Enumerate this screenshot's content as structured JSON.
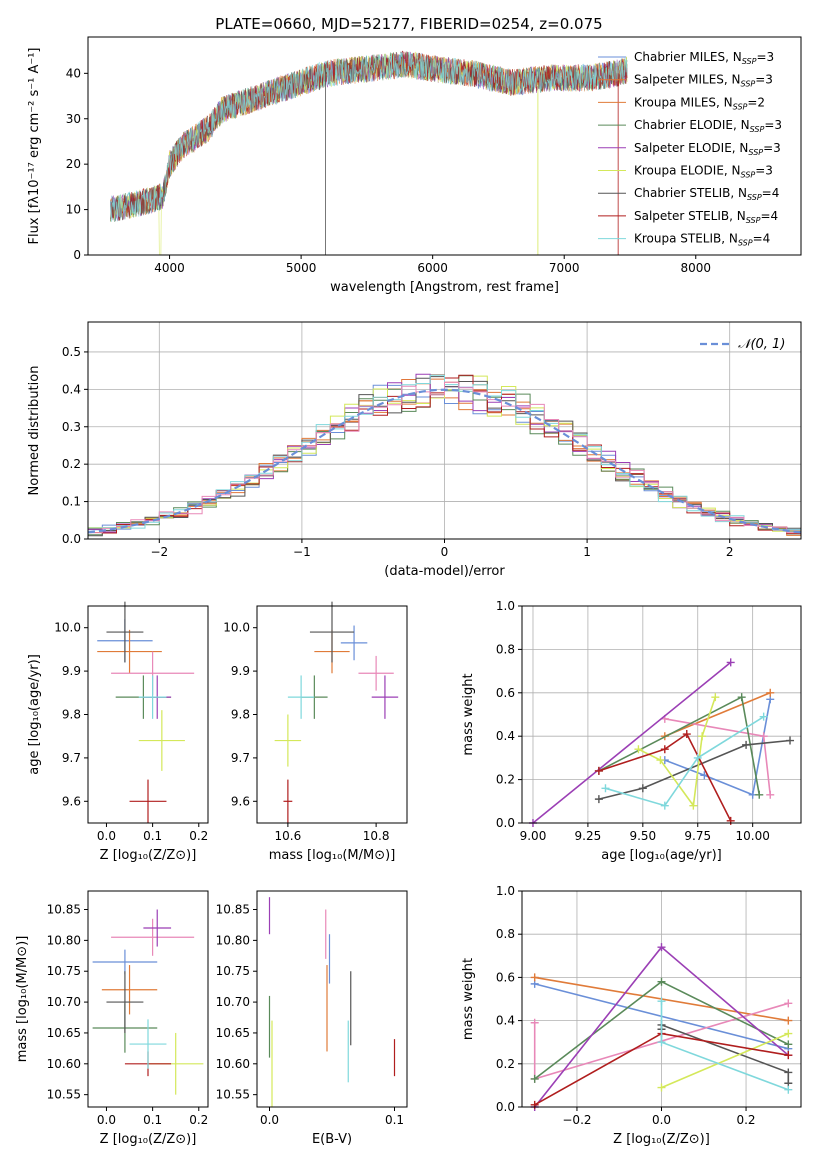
{
  "colors": {
    "Chabrier MILES": "#6a8fd8",
    "Salpeter MILES": "#e0763a",
    "Kroupa MILES": "#e07b39",
    "Chabrier ELODIE": "#5a8a5a",
    "Salpeter ELODIE": "#9b3fb5",
    "Kroupa ELODIE": "#d4e85a",
    "Chabrier STELIB": "#555555",
    "Salpeter STELIB": "#b01e1e",
    "Kroupa STELIB": "#7fd8dc",
    "pink": "#e888b8"
  },
  "chart_data": [
    {
      "type": "line",
      "title": "PLATE=0660, MJD=52177, FIBERID=0254, z=0.075",
      "xlabel": "wavelength [Angstrom, rest frame]",
      "ylabel": "Flux [fλ10⁻¹⁷ erg cm⁻² s⁻¹ A⁻¹]",
      "xlim": [
        3380,
        8800
      ],
      "ylim": [
        0,
        48
      ],
      "xticks": [
        4000,
        5000,
        6000,
        7000,
        8000
      ],
      "yticks": [
        0,
        10,
        20,
        30,
        40
      ],
      "legend_position": "top-right",
      "legend": [
        {
          "name": "Chabrier MILES",
          "sub": "N",
          "ssp": "3"
        },
        {
          "name": "Salpeter MILES",
          "sub": "N",
          "ssp": "3"
        },
        {
          "name": "Kroupa MILES",
          "sub": "N",
          "ssp": "2"
        },
        {
          "name": "Chabrier ELODIE",
          "sub": "N",
          "ssp": "3"
        },
        {
          "name": "Salpeter ELODIE",
          "sub": "N",
          "ssp": "3"
        },
        {
          "name": "Kroupa ELODIE",
          "sub": "N",
          "ssp": "3"
        },
        {
          "name": "Chabrier STELIB",
          "sub": "N",
          "ssp": "4"
        },
        {
          "name": "Salpeter STELIB",
          "sub": "N",
          "ssp": "4"
        },
        {
          "name": "Kroupa STELIB",
          "sub": "N",
          "ssp": "4"
        }
      ],
      "continuum": {
        "x": [
          3550,
          3700,
          3850,
          3950,
          4000,
          4100,
          4300,
          4400,
          4600,
          4800,
          5000,
          5200,
          5500,
          5800,
          6000,
          6300,
          6600,
          6900,
          7200,
          7400,
          7500
        ],
        "y": [
          10,
          11,
          12,
          13,
          20,
          24,
          28,
          32,
          34,
          36,
          38,
          40,
          41,
          42,
          41,
          40,
          38,
          39,
          39,
          40,
          41
        ]
      }
    },
    {
      "type": "line",
      "xlabel": "(data-model)/error",
      "ylabel": "Normed distribution",
      "xlim": [
        -2.5,
        2.5
      ],
      "ylim": [
        0,
        0.58
      ],
      "xticks": [
        -2,
        -1,
        0,
        1,
        2
      ],
      "yticks": [
        0.0,
        0.1,
        0.2,
        0.3,
        0.4,
        0.5
      ],
      "grid": true,
      "legend_position": "top-right",
      "legend": [
        "𝒩(0, 1)"
      ],
      "gaussian": {
        "mean": 0,
        "sigma": 1
      }
    },
    {
      "type": "scatter",
      "xlabel": "Z [log₁₀(Z/Z⊙)]",
      "ylabel": "age  [log₁₀(age/yr)]",
      "xlim": [
        -0.04,
        0.22
      ],
      "ylim": [
        9.55,
        10.05
      ],
      "xticks": [
        0.0,
        0.1,
        0.2
      ],
      "yticks": [
        9.6,
        9.7,
        9.8,
        9.9,
        10.0
      ],
      "points": [
        {
          "x": 0.04,
          "y": 9.97,
          "xerr": 0.06,
          "yerr": 0.05,
          "color": "#6a8fd8"
        },
        {
          "x": 0.05,
          "y": 9.945,
          "xerr": 0.07,
          "yerr": 0.05,
          "color": "#e07b39"
        },
        {
          "x": 0.1,
          "y": 9.895,
          "xerr": 0.09,
          "yerr": 0.05,
          "color": "#e888b8"
        },
        {
          "x": 0.08,
          "y": 9.84,
          "xerr": 0.06,
          "yerr": 0.05,
          "color": "#5a8a5a"
        },
        {
          "x": 0.04,
          "y": 9.99,
          "xerr": 0.04,
          "yerr": 0.07,
          "color": "#555555"
        },
        {
          "x": 0.11,
          "y": 9.84,
          "xerr": 0.03,
          "yerr": 0.05,
          "color": "#9b3fb5"
        },
        {
          "x": 0.12,
          "y": 9.74,
          "xerr": 0.05,
          "yerr": 0.07,
          "color": "#d4e85a"
        },
        {
          "x": 0.09,
          "y": 9.6,
          "xerr": 0.04,
          "yerr": 0.05,
          "color": "#b01e1e"
        },
        {
          "x": 0.1,
          "y": 9.84,
          "xerr": 0.03,
          "yerr": 0.05,
          "color": "#7fd8dc"
        }
      ]
    },
    {
      "type": "scatter",
      "xlabel": "mass [log₁₀(M/M⊙)]",
      "xlim": [
        10.53,
        10.87
      ],
      "ylim": [
        9.55,
        10.05
      ],
      "xticks": [
        10.6,
        10.8
      ],
      "yticks": [
        9.6,
        9.7,
        9.8,
        9.9,
        10.0
      ],
      "points": [
        {
          "x": 10.75,
          "y": 9.965,
          "xerr": 0.03,
          "yerr": 0.04,
          "color": "#6a8fd8"
        },
        {
          "x": 10.7,
          "y": 9.945,
          "xerr": 0.04,
          "yerr": 0.05,
          "color": "#e07b39"
        },
        {
          "x": 10.8,
          "y": 9.895,
          "xerr": 0.04,
          "yerr": 0.04,
          "color": "#e888b8"
        },
        {
          "x": 10.66,
          "y": 9.84,
          "xerr": 0.03,
          "yerr": 0.05,
          "color": "#5a8a5a"
        },
        {
          "x": 10.7,
          "y": 9.99,
          "xerr": 0.05,
          "yerr": 0.07,
          "color": "#555555"
        },
        {
          "x": 10.82,
          "y": 9.84,
          "xerr": 0.03,
          "yerr": 0.05,
          "color": "#9b3fb5"
        },
        {
          "x": 10.6,
          "y": 9.74,
          "xerr": 0.03,
          "yerr": 0.06,
          "color": "#d4e85a"
        },
        {
          "x": 10.6,
          "y": 9.6,
          "xerr": 0.01,
          "yerr": 0.05,
          "color": "#b01e1e"
        },
        {
          "x": 10.63,
          "y": 9.84,
          "xerr": 0.03,
          "yerr": 0.05,
          "color": "#7fd8dc"
        }
      ]
    },
    {
      "type": "line",
      "xlabel": "age  [log₁₀(age/yr)]",
      "ylabel": "mass weight",
      "xlim": [
        8.95,
        10.22
      ],
      "ylim": [
        0,
        1.0
      ],
      "xticks": [
        9.0,
        9.25,
        9.5,
        9.75,
        10.0
      ],
      "yticks": [
        0.0,
        0.2,
        0.4,
        0.6,
        0.8,
        1.0
      ],
      "grid": true,
      "series": [
        {
          "color": "#6a8fd8",
          "x": [
            9.6,
            9.78,
            10.0,
            10.08
          ],
          "y": [
            0.29,
            0.22,
            0.13,
            0.57
          ]
        },
        {
          "color": "#e07b39",
          "x": [
            9.6,
            10.08
          ],
          "y": [
            0.4,
            0.6
          ]
        },
        {
          "color": "#e888b8",
          "x": [
            9.6,
            10.05,
            10.08
          ],
          "y": [
            0.48,
            0.4,
            0.13
          ]
        },
        {
          "color": "#5a8a5a",
          "x": [
            9.3,
            9.95,
            10.03
          ],
          "y": [
            0.24,
            0.58,
            0.13
          ]
        },
        {
          "color": "#555555",
          "x": [
            9.3,
            9.5,
            9.97,
            10.17
          ],
          "y": [
            0.11,
            0.16,
            0.36,
            0.38
          ]
        },
        {
          "color": "#9b3fb5",
          "x": [
            9.0,
            9.9
          ],
          "y": [
            0.0,
            0.74
          ]
        },
        {
          "color": "#d4e85a",
          "x": [
            9.48,
            9.58,
            9.73,
            9.77,
            9.83
          ],
          "y": [
            0.34,
            0.29,
            0.08,
            0.4,
            0.58
          ]
        },
        {
          "color": "#b01e1e",
          "x": [
            9.3,
            9.6,
            9.7,
            9.9
          ],
          "y": [
            0.24,
            0.34,
            0.41,
            0.01
          ]
        },
        {
          "color": "#7fd8dc",
          "x": [
            9.33,
            9.6,
            9.75,
            10.05
          ],
          "y": [
            0.16,
            0.08,
            0.3,
            0.49
          ]
        }
      ]
    },
    {
      "type": "scatter",
      "xlabel": "Z [log₁₀(Z/Z⊙)]",
      "ylabel": "mass [log₁₀(M/M⊙)]",
      "xlim": [
        -0.04,
        0.22
      ],
      "ylim": [
        10.53,
        10.88
      ],
      "xticks": [
        0.0,
        0.1,
        0.2
      ],
      "yticks": [
        10.55,
        10.6,
        10.65,
        10.7,
        10.75,
        10.8,
        10.85
      ],
      "points": [
        {
          "x": 0.04,
          "y": 10.765,
          "xerr": 0.07,
          "yerr": 0.02,
          "color": "#6a8fd8"
        },
        {
          "x": 0.05,
          "y": 10.72,
          "xerr": 0.06,
          "yerr": 0.04,
          "color": "#e07b39"
        },
        {
          "x": 0.1,
          "y": 10.805,
          "xerr": 0.09,
          "yerr": 0.03,
          "color": "#e888b8"
        },
        {
          "x": 0.04,
          "y": 10.658,
          "xerr": 0.07,
          "yerr": 0.04,
          "color": "#5a8a5a"
        },
        {
          "x": 0.04,
          "y": 10.7,
          "xerr": 0.04,
          "yerr": 0.05,
          "color": "#555555"
        },
        {
          "x": 0.11,
          "y": 10.82,
          "xerr": 0.03,
          "yerr": 0.03,
          "color": "#9b3fb5"
        },
        {
          "x": 0.15,
          "y": 10.6,
          "xerr": 0.06,
          "yerr": 0.05,
          "color": "#d4e85a"
        },
        {
          "x": 0.09,
          "y": 10.6,
          "xerr": 0.05,
          "yerr": 0.02,
          "color": "#b01e1e"
        },
        {
          "x": 0.09,
          "y": 10.632,
          "xerr": 0.04,
          "yerr": 0.04,
          "color": "#7fd8dc"
        }
      ]
    },
    {
      "type": "scatter",
      "xlabel": "E(B-V)",
      "xlim": [
        -0.01,
        0.11
      ],
      "ylim": [
        10.53,
        10.88
      ],
      "xticks": [
        0.0,
        0.1
      ],
      "yticks": [
        10.55,
        10.6,
        10.65,
        10.7,
        10.75,
        10.8,
        10.85
      ],
      "points": [
        {
          "x": 0.0,
          "y": 10.84,
          "yerr": 0.03,
          "color": "#9b3fb5"
        },
        {
          "x": 0.0,
          "y": 10.66,
          "yerr": 0.05,
          "color": "#5a8a5a"
        },
        {
          "x": 0.002,
          "y": 10.6,
          "yerr": 0.07,
          "color": "#d4e85a"
        },
        {
          "x": 0.045,
          "y": 10.81,
          "yerr": 0.04,
          "color": "#e888b8"
        },
        {
          "x": 0.046,
          "y": 10.69,
          "yerr": 0.07,
          "color": "#e07b39"
        },
        {
          "x": 0.048,
          "y": 10.77,
          "yerr": 0.04,
          "color": "#6a8fd8"
        },
        {
          "x": 0.063,
          "y": 10.62,
          "yerr": 0.05,
          "color": "#7fd8dc"
        },
        {
          "x": 0.065,
          "y": 10.69,
          "yerr": 0.06,
          "color": "#555555"
        },
        {
          "x": 0.1,
          "y": 10.61,
          "yerr": 0.03,
          "color": "#b01e1e"
        }
      ]
    },
    {
      "type": "line",
      "xlabel": "Z [log₁₀(Z/Z⊙)]",
      "ylabel": "mass weight",
      "xlim": [
        -0.33,
        0.33
      ],
      "ylim": [
        0,
        1.0
      ],
      "xticks": [
        -0.2,
        0.0,
        0.2
      ],
      "yticks": [
        0.0,
        0.2,
        0.4,
        0.6,
        0.8,
        1.0
      ],
      "grid": true,
      "series": [
        {
          "color": "#6a8fd8",
          "x": [
            -0.3,
            0.3
          ],
          "y": [
            0.57,
            0.27
          ]
        },
        {
          "color": "#e07b39",
          "x": [
            -0.3,
            0.3
          ],
          "y": [
            0.6,
            0.4
          ]
        },
        {
          "color": "#e888b8",
          "x": [
            -0.3,
            -0.3,
            0.3
          ],
          "y": [
            0.39,
            0.13,
            0.48
          ]
        },
        {
          "color": "#5a8a5a",
          "x": [
            -0.3,
            0.0,
            0.3
          ],
          "y": [
            0.13,
            0.58,
            0.29
          ]
        },
        {
          "color": "#555555",
          "x": [
            0.0,
            0.0,
            0.3,
            0.3
          ],
          "y": [
            0.36,
            0.38,
            0.16,
            0.11
          ]
        },
        {
          "color": "#9b3fb5",
          "x": [
            -0.3,
            0.0,
            0.3
          ],
          "y": [
            0.0,
            0.74,
            0.24
          ]
        },
        {
          "color": "#d4e85a",
          "x": [
            0.0,
            0.3
          ],
          "y": [
            0.09,
            0.34
          ]
        },
        {
          "color": "#b01e1e",
          "x": [
            -0.3,
            0.0,
            0.3
          ],
          "y": [
            0.01,
            0.34,
            0.24
          ]
        },
        {
          "color": "#7fd8dc",
          "x": [
            0.0,
            0.0,
            0.3
          ],
          "y": [
            0.49,
            0.3,
            0.08
          ]
        }
      ]
    }
  ]
}
